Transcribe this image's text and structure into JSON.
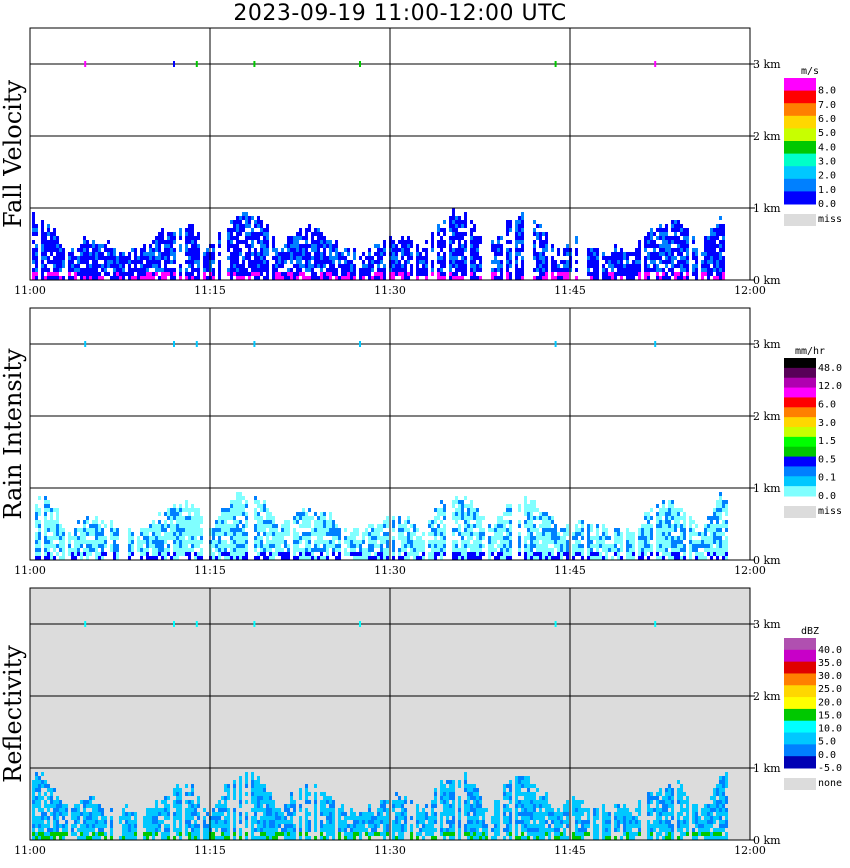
{
  "title": "2023-09-19   11:00-12:00 UTC",
  "colors": {
    "missing_gray": "#dcdcdc",
    "grid": "#000000"
  },
  "chart_data": [
    {
      "type": "heatmap",
      "panel": "fall_velocity",
      "ylabel": "Fall Velocity",
      "x_ticks": [
        "11:00",
        "11:15",
        "11:30",
        "11:45",
        "12:00"
      ],
      "y_ticks": [
        "0 km",
        "1 km",
        "2 km",
        "3 km"
      ],
      "xlim": [
        "11:00",
        "12:00"
      ],
      "ylim": [
        0,
        3.5
      ],
      "background": "#ffffff",
      "legend": {
        "unit": "m/s",
        "labels": [
          "8.0",
          "7.0",
          "6.0",
          "5.0",
          "4.0",
          "3.0",
          "2.0",
          "1.0",
          "0.0"
        ],
        "colors": [
          "#ff00ff",
          "#ff0000",
          "#ff7f00",
          "#ffd700",
          "#c8ff00",
          "#00c800",
          "#00ffc8",
          "#00c8ff",
          "#0080ff",
          "#0000ff"
        ],
        "miss_label": "miss"
      },
      "echo": {
        "dominant": "#0000ff",
        "secondary": "#0080ff",
        "base": "#ff00ff",
        "top_km": 0.85
      },
      "top_markers_min": [
        4.6,
        12.0,
        13.9,
        18.7,
        27.5,
        43.8,
        52.1
      ],
      "marker_colors": [
        "#ff00ff",
        "#0000ff",
        "#00c800",
        "#00c800",
        "#00c800",
        "#00c800",
        "#ff00ff"
      ]
    },
    {
      "type": "heatmap",
      "panel": "rain_intensity",
      "ylabel": "Rain Intensity",
      "x_ticks": [
        "11:00",
        "11:15",
        "11:30",
        "11:45",
        "12:00"
      ],
      "y_ticks": [
        "0 km",
        "1 km",
        "2 km",
        "3 km"
      ],
      "xlim": [
        "11:00",
        "12:00"
      ],
      "ylim": [
        0,
        3.5
      ],
      "background": "#ffffff",
      "legend": {
        "unit": "mm/hr",
        "labels": [
          "48.0",
          "12.0",
          "6.0",
          "3.0",
          "1.5",
          "0.5",
          "0.1",
          "0.0"
        ],
        "colors": [
          "#000000",
          "#580058",
          "#b000b0",
          "#ff00ff",
          "#ff0000",
          "#ff7f00",
          "#ffd700",
          "#c8ff00",
          "#00ff00",
          "#00c800",
          "#0000ff",
          "#0080ff",
          "#00c8ff",
          "#80ffff"
        ],
        "miss_label": "miss"
      },
      "echo": {
        "dominant": "#80ffff",
        "secondary": "#0080ff",
        "base": "#0000ff",
        "top_km": 0.85
      },
      "top_markers_min": [
        4.6,
        12.0,
        13.9,
        18.7,
        27.5,
        43.8,
        52.1
      ],
      "marker_colors": [
        "#00c8ff",
        "#00c8ff",
        "#00c8ff",
        "#00c8ff",
        "#00c8ff",
        "#00c8ff",
        "#00c8ff"
      ]
    },
    {
      "type": "heatmap",
      "panel": "reflectivity",
      "ylabel": "Reflectivity",
      "x_ticks": [
        "11:00",
        "11:15",
        "11:30",
        "11:45",
        "12:00"
      ],
      "y_ticks": [
        "0 km",
        "1 km",
        "2 km",
        "3 km"
      ],
      "xlim": [
        "11:00",
        "12:00"
      ],
      "ylim": [
        0,
        3.5
      ],
      "background": "#dcdcdc",
      "legend": {
        "unit": "dBZ",
        "labels": [
          "40.0",
          "35.0",
          "30.0",
          "25.0",
          "20.0",
          "15.0",
          "10.0",
          "5.0",
          "0.0",
          "-5.0"
        ],
        "colors": [
          "#b050b0",
          "#c800c8",
          "#e00000",
          "#ff7f00",
          "#ffd700",
          "#ffff00",
          "#00c800",
          "#00ffff",
          "#00c8ff",
          "#0080ff",
          "#0000b4"
        ],
        "miss_label": "none"
      },
      "echo": {
        "dominant": "#00c8ff",
        "secondary": "#0080ff",
        "base": "#00c800",
        "top_km": 0.85
      },
      "top_markers_min": [
        4.6,
        12.0,
        13.9,
        18.7,
        27.5,
        43.8,
        52.1
      ],
      "marker_colors": [
        "#00ffff",
        "#00ffff",
        "#00ffff",
        "#00ffff",
        "#00ffff",
        "#00ffff",
        "#00ffff"
      ]
    }
  ]
}
